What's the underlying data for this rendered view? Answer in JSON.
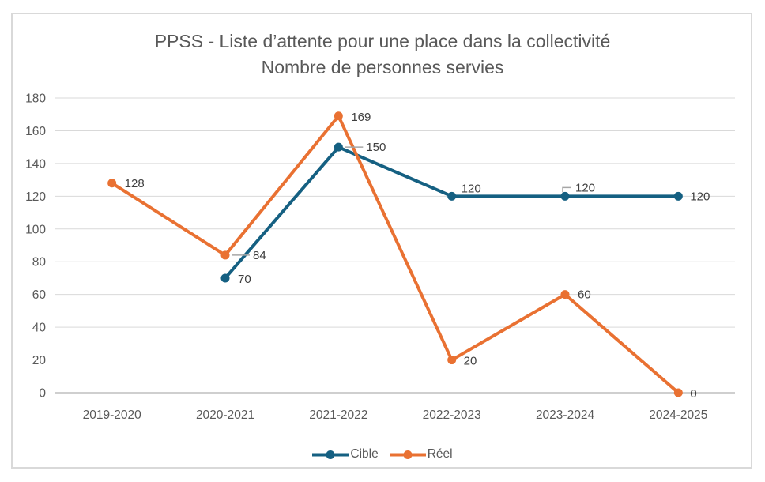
{
  "chart_data": {
    "type": "line",
    "title": "PPSS - Liste d’attente pour une place dans la collectivité",
    "subtitle": "Nombre de personnes servies",
    "categories": [
      "2019-2020",
      "2020-2021",
      "2021-2022",
      "2022-2023",
      "2023-2024",
      "2024-2025"
    ],
    "series": [
      {
        "name": "Cible",
        "color": "#156082",
        "values": [
          null,
          70,
          150,
          120,
          120,
          120
        ],
        "labels": [
          null,
          {
            "dx": 16,
            "dy": 6,
            "leader": null
          },
          {
            "dx": 35,
            "dy": 5,
            "leader": "h"
          },
          {
            "dx": 12,
            "dy": -5,
            "leader": null
          },
          {
            "dx": 13,
            "dy": -6,
            "leader": "bent"
          },
          {
            "dx": 15,
            "dy": 5,
            "leader": null
          }
        ]
      },
      {
        "name": "Réel",
        "color": "#E97132",
        "values": [
          128,
          84,
          169,
          20,
          60,
          0
        ],
        "labels": [
          {
            "dx": 16,
            "dy": 5,
            "leader": null
          },
          {
            "dx": 35,
            "dy": 5,
            "leader": "h"
          },
          {
            "dx": 16,
            "dy": 6,
            "leader": null
          },
          {
            "dx": 15,
            "dy": 6,
            "leader": null
          },
          {
            "dx": 16,
            "dy": 5,
            "leader": null
          },
          {
            "dx": 15,
            "dy": 6,
            "leader": null
          }
        ]
      }
    ],
    "ylim": [
      0,
      180
    ],
    "ytick_step": 20,
    "xlabel": "",
    "ylabel": "",
    "grid": "horizontal",
    "legend_position": "bottom",
    "colors": {
      "grid": "#D9D9D9",
      "axis_line": "#BFBFBF",
      "tick_text": "#595959",
      "data_label": "#404040",
      "leader": "#A6A6A6",
      "title": "#595959",
      "frame_border": "#D9D9D9"
    }
  }
}
